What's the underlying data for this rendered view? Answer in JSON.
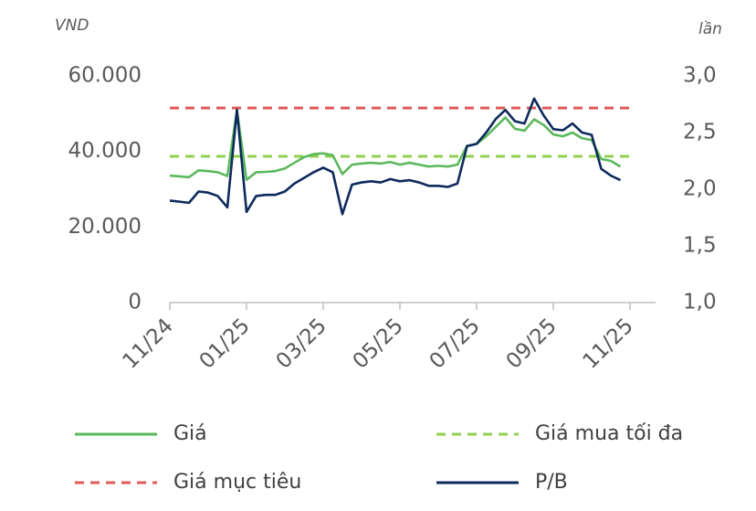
{
  "chart_data": {
    "type": "line",
    "y_unit": "VND",
    "y2_unit": "lần",
    "categories": [
      "11/24",
      null,
      null,
      null,
      null,
      null,
      null,
      null,
      "01/25",
      null,
      null,
      null,
      null,
      null,
      null,
      null,
      "03/25",
      null,
      null,
      null,
      null,
      null,
      null,
      null,
      "05/25",
      null,
      null,
      null,
      null,
      null,
      null,
      null,
      "07/25",
      null,
      null,
      null,
      null,
      null,
      null,
      null,
      "09/25",
      null,
      null,
      null,
      null,
      null,
      null,
      null,
      "11/25"
    ],
    "ylim": [
      0,
      60000
    ],
    "yticks": [
      0,
      {
        "value": 20000,
        "label": "20.000"
      },
      {
        "value": 40000,
        "label": "40.000"
      },
      {
        "value": 60000,
        "label": "60.000"
      }
    ],
    "y2lim": [
      1,
      3
    ],
    "y2ticks": [
      {
        "value": 1,
        "label": "1,0"
      },
      {
        "value": 1.5,
        "label": "1,5"
      },
      {
        "value": 2,
        "label": "2,0"
      },
      {
        "value": 2.5,
        "label": "2,5"
      },
      {
        "value": 3,
        "label": "3,0"
      }
    ],
    "series": [
      {
        "name": "Giá",
        "color": "#5cb85c",
        "dash": false,
        "values": [
          33600,
          33400,
          33200,
          35000,
          34800,
          34500,
          33500,
          51000,
          32500,
          34500,
          34600,
          34800,
          35500,
          37000,
          38500,
          39300,
          39500,
          39000,
          34000,
          36500,
          36800,
          37000,
          36800,
          37200,
          36500,
          37000,
          36500,
          36000,
          36200,
          36000,
          36500,
          41500,
          42000,
          44000,
          46500,
          49000,
          46000,
          45500,
          48500,
          47000,
          44500,
          44000,
          45000,
          43500,
          43000,
          38000,
          37500,
          36000,
          null
        ]
      },
      {
        "name": "Giá mua tối đa",
        "color": "#92d050",
        "dash": true,
        "values": [
          38700,
          38700,
          38700,
          38700,
          38700,
          38700,
          38700,
          38700,
          38700,
          38700,
          38700,
          38700,
          38700,
          38700,
          38700,
          38700,
          38700,
          38700,
          38700,
          38700,
          38700,
          38700,
          38700,
          38700,
          38700,
          38700,
          38700,
          38700,
          38700,
          38700,
          38700,
          38700,
          38700,
          38700,
          38700,
          38700,
          38700,
          38700,
          38700,
          38700,
          38700,
          38700,
          38700,
          38700,
          38700,
          38700,
          38700,
          38700,
          38700
        ]
      },
      {
        "name": "Giá mục tiêu",
        "color": "#e05a5a",
        "dash": true,
        "values": [
          51500,
          51500,
          51500,
          51500,
          51500,
          51500,
          51500,
          51500,
          51500,
          51500,
          51500,
          51500,
          51500,
          51500,
          51500,
          51500,
          51500,
          51500,
          51500,
          51500,
          51500,
          51500,
          51500,
          51500,
          51500,
          51500,
          51500,
          51500,
          51500,
          51500,
          51500,
          51500,
          51500,
          51500,
          51500,
          51500,
          51500,
          51500,
          51500,
          51500,
          51500,
          51500,
          51500,
          51500,
          51500,
          51500,
          51500,
          51500,
          51500
        ]
      },
      {
        "name": "P/B",
        "color": "#0d2a5c",
        "dash": false,
        "axis": "y2",
        "values": [
          1.9,
          1.89,
          1.88,
          1.98,
          1.97,
          1.94,
          1.84,
          2.7,
          1.8,
          1.94,
          1.95,
          1.95,
          1.98,
          2.05,
          2.1,
          2.15,
          2.19,
          2.15,
          1.78,
          2.04,
          2.06,
          2.07,
          2.06,
          2.09,
          2.07,
          2.08,
          2.06,
          2.03,
          2.03,
          2.02,
          2.05,
          2.38,
          2.4,
          2.5,
          2.62,
          2.7,
          2.6,
          2.58,
          2.8,
          2.65,
          2.53,
          2.52,
          2.58,
          2.5,
          2.48,
          2.18,
          2.12,
          2.08,
          null
        ]
      }
    ]
  }
}
